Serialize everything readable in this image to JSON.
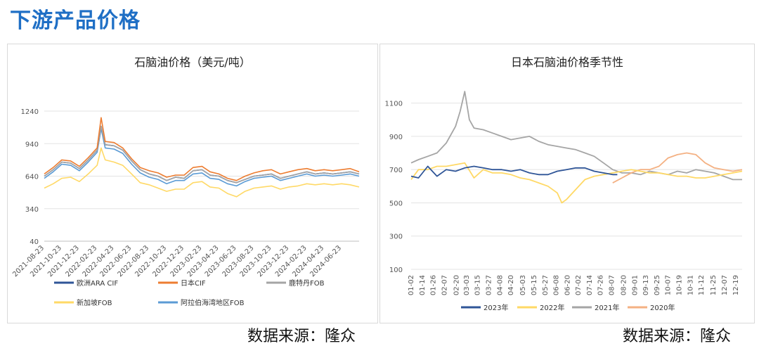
{
  "page": {
    "title": "下游产品价格",
    "source_left": "数据来源：隆众",
    "source_right": "数据来源：隆众"
  },
  "chart_data": [
    {
      "type": "line",
      "title": "石脑油价格（美元/吨）",
      "ylim": [
        40,
        1240
      ],
      "yticks": [
        40,
        340,
        640,
        940,
        1240
      ],
      "x_tick_labels": [
        "2021-08-23",
        "2021-10-23",
        "2021-12-23",
        "2022-02-23",
        "2022-04-23",
        "2022-06-23",
        "2022-08-23",
        "2022-10-23",
        "2022-12-23",
        "2023-02-23",
        "2023-04-23",
        "2023-06-23",
        "2023-08-23",
        "2023-10-23",
        "2023-12-23",
        "2024-02-23",
        "2024-04-23",
        "2024-06-23"
      ],
      "x_dates": [
        "2021-08-23",
        "2021-09-23",
        "2021-10-23",
        "2021-11-23",
        "2021-12-23",
        "2022-01-23",
        "2022-02-23",
        "2022-03-09",
        "2022-03-23",
        "2022-04-23",
        "2022-05-23",
        "2022-06-23",
        "2022-07-23",
        "2022-08-23",
        "2022-09-23",
        "2022-10-23",
        "2022-11-23",
        "2022-12-23",
        "2023-01-23",
        "2023-02-23",
        "2023-03-23",
        "2023-04-23",
        "2023-05-23",
        "2023-06-23",
        "2023-07-23",
        "2023-08-23",
        "2023-09-23",
        "2023-10-23",
        "2023-11-23",
        "2023-12-23",
        "2024-01-23",
        "2024-02-23",
        "2024-03-23",
        "2024-04-23",
        "2024-05-23",
        "2024-06-23",
        "2024-07-23",
        "2024-08-23"
      ],
      "legend_position": "bottom",
      "series": [
        {
          "name": "欧洲ARA CIF",
          "color": "#2f5597",
          "values": [
            640,
            700,
            770,
            760,
            710,
            790,
            880,
            1100,
            930,
            920,
            880,
            780,
            700,
            660,
            640,
            600,
            630,
            620,
            690,
            700,
            650,
            640,
            600,
            580,
            610,
            640,
            650,
            660,
            620,
            640,
            660,
            680,
            660,
            670,
            660,
            670,
            680,
            660
          ]
        },
        {
          "name": "日本CIF",
          "color": "#ed7d31",
          "values": [
            660,
            720,
            790,
            780,
            730,
            810,
            900,
            1180,
            960,
            950,
            900,
            800,
            720,
            690,
            670,
            630,
            650,
            650,
            720,
            730,
            680,
            660,
            620,
            600,
            640,
            670,
            690,
            700,
            660,
            680,
            700,
            710,
            690,
            700,
            690,
            700,
            710,
            680
          ]
        },
        {
          "name": "鹿特丹FOB",
          "color": "#a5a5a5",
          "values": [
            640,
            700,
            770,
            760,
            710,
            790,
            880,
            1100,
            930,
            920,
            880,
            780,
            700,
            660,
            640,
            600,
            630,
            620,
            690,
            700,
            650,
            640,
            600,
            580,
            610,
            640,
            650,
            660,
            620,
            640,
            660,
            680,
            660,
            670,
            660,
            670,
            680,
            660
          ]
        },
        {
          "name": "新加坡FOB",
          "color": "#ffd966",
          "values": [
            530,
            570,
            620,
            630,
            590,
            660,
            740,
            900,
            790,
            770,
            740,
            660,
            580,
            560,
            530,
            500,
            520,
            520,
            580,
            590,
            540,
            530,
            480,
            450,
            500,
            530,
            540,
            550,
            520,
            540,
            550,
            570,
            560,
            570,
            560,
            570,
            560,
            540
          ]
        },
        {
          "name": "阿拉伯海湾地区FOB",
          "color": "#5b9bd5",
          "values": [
            620,
            680,
            750,
            740,
            690,
            770,
            860,
            1080,
            900,
            890,
            850,
            750,
            670,
            630,
            610,
            570,
            600,
            600,
            660,
            670,
            620,
            610,
            570,
            550,
            590,
            620,
            630,
            640,
            600,
            620,
            640,
            660,
            640,
            650,
            640,
            650,
            660,
            640
          ]
        }
      ]
    },
    {
      "type": "line",
      "title": "日本石脑油价格季节性",
      "ylim": [
        100,
        1200
      ],
      "yticks": [
        100,
        300,
        500,
        700,
        900,
        1100
      ],
      "x_tick_labels": [
        "01-02",
        "01-14",
        "01-26",
        "02-07",
        "02-20",
        "03-03",
        "03-15",
        "03-27",
        "04-08",
        "04-20",
        "05-03",
        "05-15",
        "05-27",
        "06-08",
        "06-20",
        "07-02",
        "07-14",
        "07-26",
        "08-07",
        "08-20",
        "09-01",
        "09-13",
        "09-25",
        "10-07",
        "10-19",
        "10-31",
        "11-12",
        "11-25",
        "12-07",
        "12-19"
      ],
      "x_days": [
        2,
        14,
        26,
        38,
        51,
        62,
        74,
        86,
        98,
        110,
        123,
        135,
        147,
        159,
        171,
        183,
        195,
        207,
        219,
        232,
        244,
        256,
        268,
        280,
        292,
        304,
        316,
        329,
        341,
        353
      ],
      "legend_position": "bottom",
      "series": [
        {
          "name": "2023年",
          "color": "#2f5597",
          "x": [
            2,
            10,
            20,
            30,
            40,
            50,
            60,
            70,
            80,
            90,
            100,
            110,
            120,
            130,
            140,
            150,
            160,
            170,
            180,
            190,
            200,
            210,
            220,
            225
          ],
          "values": [
            660,
            650,
            720,
            660,
            700,
            690,
            710,
            720,
            710,
            700,
            700,
            690,
            700,
            680,
            670,
            670,
            690,
            700,
            710,
            710,
            690,
            680,
            670,
            670
          ]
        },
        {
          "name": "2022年",
          "color": "#ffd966",
          "x": [
            2,
            10,
            20,
            30,
            40,
            50,
            60,
            70,
            80,
            90,
            100,
            110,
            120,
            130,
            140,
            150,
            160,
            165,
            170,
            180,
            190,
            200,
            210,
            220,
            230,
            240,
            250,
            260,
            270,
            280,
            290,
            300,
            310,
            320,
            330,
            340,
            350,
            360
          ],
          "values": [
            640,
            700,
            700,
            720,
            720,
            730,
            740,
            650,
            700,
            680,
            680,
            670,
            650,
            640,
            620,
            600,
            560,
            500,
            520,
            580,
            640,
            660,
            670,
            680,
            690,
            700,
            690,
            680,
            680,
            670,
            660,
            660,
            650,
            650,
            660,
            670,
            680,
            690
          ]
        },
        {
          "name": "2021年",
          "color": "#a5a5a5",
          "x": [
            2,
            10,
            20,
            30,
            40,
            50,
            55,
            60,
            65,
            70,
            80,
            90,
            100,
            110,
            120,
            130,
            140,
            150,
            160,
            170,
            180,
            190,
            200,
            210,
            220,
            230,
            240,
            250,
            260,
            270,
            280,
            290,
            300,
            310,
            320,
            330,
            340,
            350,
            360
          ],
          "values": [
            740,
            760,
            780,
            800,
            860,
            960,
            1050,
            1170,
            1000,
            950,
            940,
            920,
            900,
            880,
            890,
            900,
            870,
            850,
            840,
            830,
            820,
            800,
            780,
            740,
            700,
            680,
            680,
            670,
            690,
            680,
            670,
            690,
            680,
            700,
            690,
            680,
            660,
            640,
            640
          ]
        },
        {
          "name": "2020年",
          "color": "#f4b183",
          "x": [
            220,
            230,
            240,
            250,
            260,
            270,
            280,
            290,
            300,
            310,
            320,
            330,
            340,
            350,
            360
          ],
          "values": [
            620,
            650,
            680,
            700,
            700,
            720,
            770,
            790,
            800,
            790,
            740,
            710,
            700,
            690,
            700
          ]
        }
      ]
    }
  ]
}
